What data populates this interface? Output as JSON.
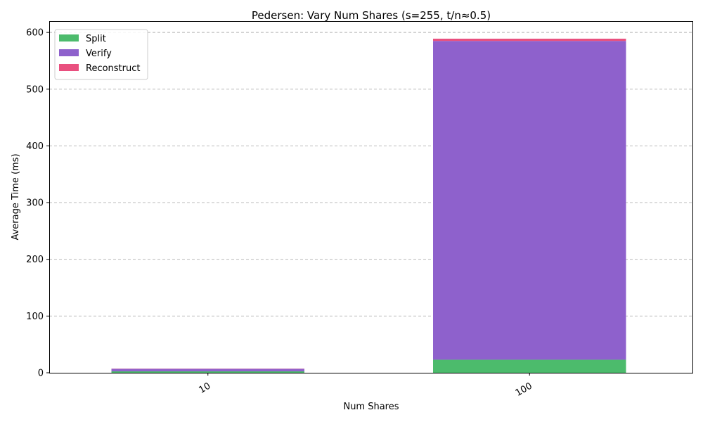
{
  "chart_data": {
    "type": "bar",
    "stacked": true,
    "title": "Pedersen: Vary Num Shares (s=255, t/n≈0.5)",
    "xlabel": "Num Shares",
    "ylabel": "Average Time (ms)",
    "categories": [
      "10",
      "100"
    ],
    "ylim": [
      0,
      620
    ],
    "yticks": [
      0,
      100,
      200,
      300,
      400,
      500,
      600
    ],
    "grid": "y",
    "legend_position": "top-left",
    "series": [
      {
        "name": "Split",
        "color": "#4cbb6c",
        "values": [
          2.5,
          23
        ]
      },
      {
        "name": "Verify",
        "color": "#8e61cc",
        "values": [
          4.5,
          562
        ]
      },
      {
        "name": "Reconstruct",
        "color": "#e9507f",
        "values": [
          0.4,
          4
        ]
      }
    ]
  }
}
